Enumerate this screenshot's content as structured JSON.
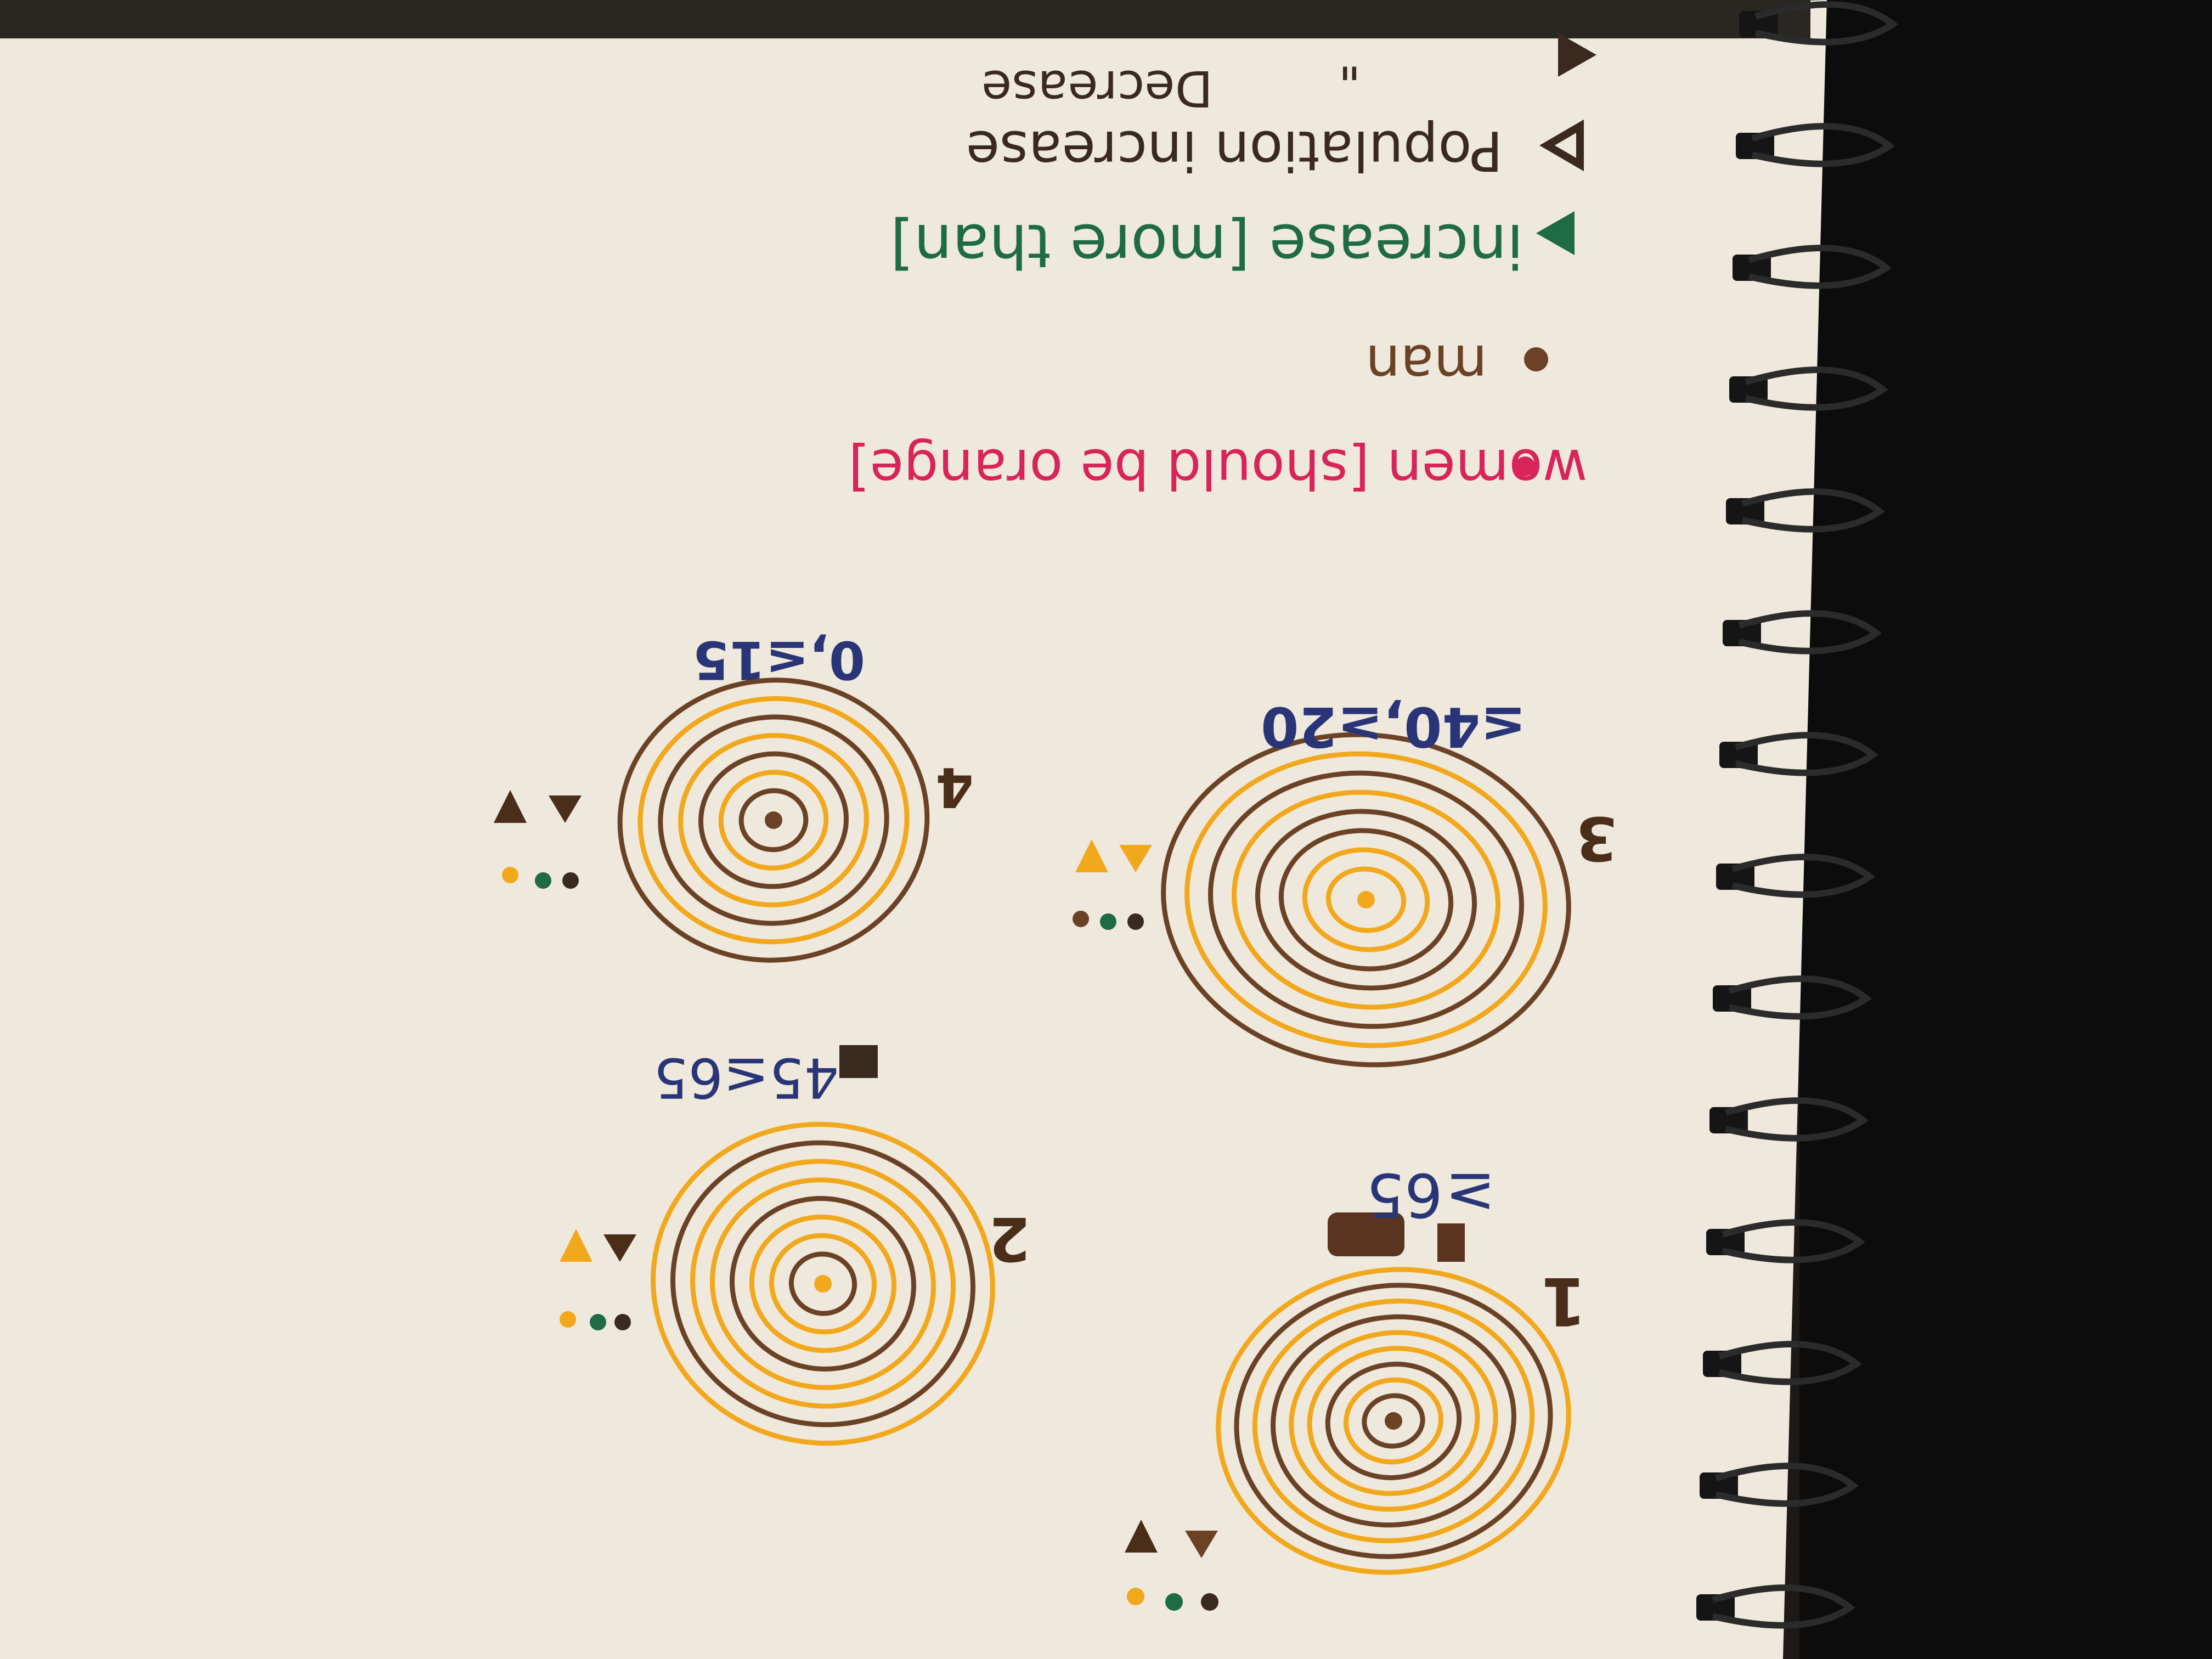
{
  "colors": {
    "paper": "#efe8dc",
    "brown": "#6b4226",
    "dark_brown": "#4a2e1a",
    "orange": "#f2a81d",
    "green": "#1e6b45",
    "pink": "#d8245a",
    "blue": "#2a3578",
    "ink_dark": "#3a2a1e",
    "binding": "#151515"
  },
  "legend": {
    "women_label": "women [should be orange]",
    "man_label": "man",
    "increase_more_label": "increase [more than]",
    "pop_increase_label": "Population increase",
    "ditto_mark": "\"",
    "decrease_label": "Decrease",
    "colon": ":"
  },
  "diagrams": [
    {
      "number": "1",
      "label_prefix": "≥",
      "label": "65",
      "ring_pattern": [
        "orange",
        "brown",
        "orange",
        "brown",
        "orange",
        "orange",
        "brown",
        "orange",
        "brown"
      ],
      "center": "brown"
    },
    {
      "number": "2",
      "label": "45≤65",
      "ring_pattern": [
        "orange",
        "brown",
        "orange",
        "orange",
        "brown",
        "orange",
        "orange",
        "brown"
      ],
      "center": "orange"
    },
    {
      "number": "3",
      "label": "≤40,≥20",
      "ring_pattern": [
        "brown",
        "orange",
        "brown",
        "orange",
        "brown",
        "brown",
        "orange",
        "orange"
      ],
      "center": "orange"
    },
    {
      "number": "4",
      "label": "0,≤15",
      "ring_pattern": [
        "brown",
        "orange",
        "brown",
        "orange",
        "brown",
        "orange",
        "brown"
      ],
      "center": "brown"
    }
  ],
  "icons": {
    "dot": "dot-icon",
    "up_triangle": "up-triangle-icon",
    "down_triangle": "down-triangle-icon"
  }
}
